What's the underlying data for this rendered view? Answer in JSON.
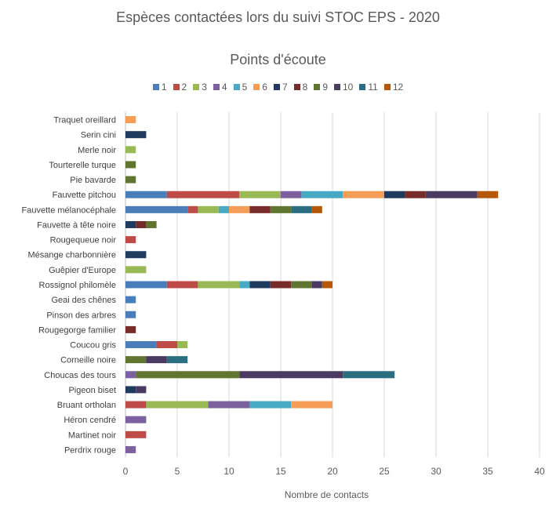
{
  "title": "Espèces contactées lors du suivi STOC EPS - 2020",
  "subtitle": "Points d'écoute",
  "colors": [
    "#4a7ebb",
    "#be4b48",
    "#98b954",
    "#7d60a0",
    "#46aac5",
    "#f59d56",
    "#1f3b5e",
    "#772c2a",
    "#5f7530",
    "#4b3b62",
    "#2b6e7f",
    "#b65708"
  ],
  "chart_data": {
    "type": "bar",
    "orientation": "horizontal",
    "stacked": true,
    "title": "Points d'écoute",
    "xlabel": "Nombre de contacts",
    "ylabel": "",
    "xlim": [
      0,
      40
    ],
    "xticks": [
      0,
      5,
      10,
      15,
      20,
      25,
      30,
      35,
      40
    ],
    "grid": true,
    "legend_position": "top",
    "categories": [
      "Traquet oreillard",
      "Serin cini",
      "Merle noir",
      "Tourterelle turque",
      "Pie bavarde",
      "Fauvette pitchou",
      "Fauvette mélanocéphale",
      "Fauvette à tête noire",
      "Rougequeue noir",
      "Mésange charbonnière",
      "Guêpier d'Europe",
      "Rossignol philomèle",
      "Geai des chênes",
      "Pinson des arbres",
      "Rougegorge familier",
      "Coucou gris",
      "Corneille noire",
      "Choucas des tours",
      "Pigeon biset",
      "Bruant ortholan",
      "Héron cendré",
      "Martinet noir",
      "Perdrix rouge"
    ],
    "series": [
      {
        "name": "1",
        "values": [
          0,
          0,
          0,
          0,
          0,
          4,
          6,
          0,
          0,
          0,
          0,
          4,
          1,
          1,
          0,
          3,
          0,
          0,
          0,
          0,
          0,
          0,
          0
        ]
      },
      {
        "name": "2",
        "values": [
          0,
          0,
          0,
          0,
          0,
          7,
          1,
          0,
          1,
          0,
          0,
          3,
          0,
          0,
          0,
          2,
          0,
          0,
          0,
          2,
          0,
          2,
          0
        ]
      },
      {
        "name": "3",
        "values": [
          0,
          0,
          1,
          0,
          0,
          4,
          2,
          0,
          0,
          0,
          2,
          4,
          0,
          0,
          0,
          1,
          0,
          0,
          0,
          6,
          0,
          0,
          0
        ]
      },
      {
        "name": "4",
        "values": [
          0,
          0,
          0,
          0,
          0,
          2,
          0,
          0,
          0,
          0,
          0,
          0,
          0,
          0,
          0,
          0,
          0,
          1,
          0,
          4,
          2,
          0,
          1
        ]
      },
      {
        "name": "5",
        "values": [
          0,
          0,
          0,
          0,
          0,
          4,
          1,
          0,
          0,
          0,
          0,
          1,
          0,
          0,
          0,
          0,
          0,
          0,
          0,
          4,
          0,
          0,
          0
        ]
      },
      {
        "name": "6",
        "values": [
          1,
          0,
          0,
          0,
          0,
          4,
          2,
          0,
          0,
          0,
          0,
          0,
          0,
          0,
          0,
          0,
          0,
          0,
          0,
          4,
          0,
          0,
          0
        ]
      },
      {
        "name": "7",
        "values": [
          0,
          2,
          0,
          0,
          0,
          2,
          0,
          1,
          0,
          2,
          0,
          2,
          0,
          0,
          0,
          0,
          0,
          0,
          1,
          0,
          0,
          0,
          0
        ]
      },
      {
        "name": "8",
        "values": [
          0,
          0,
          0,
          0,
          0,
          2,
          2,
          1,
          0,
          0,
          0,
          2,
          0,
          0,
          1,
          0,
          0,
          0,
          0,
          0,
          0,
          0,
          0
        ]
      },
      {
        "name": "9",
        "values": [
          0,
          0,
          0,
          1,
          1,
          0,
          2,
          1,
          0,
          0,
          0,
          2,
          0,
          0,
          0,
          0,
          2,
          10,
          0,
          0,
          0,
          0,
          0
        ]
      },
      {
        "name": "10",
        "values": [
          0,
          0,
          0,
          0,
          0,
          5,
          0,
          0,
          0,
          0,
          0,
          1,
          0,
          0,
          0,
          0,
          2,
          10,
          1,
          0,
          0,
          0,
          0
        ]
      },
      {
        "name": "11",
        "values": [
          0,
          0,
          0,
          0,
          0,
          0,
          2,
          0,
          0,
          0,
          0,
          0,
          0,
          0,
          0,
          0,
          2,
          5,
          0,
          0,
          0,
          0,
          0
        ]
      },
      {
        "name": "12",
        "values": [
          0,
          0,
          0,
          0,
          0,
          2,
          1,
          0,
          0,
          0,
          0,
          1,
          0,
          0,
          0,
          0,
          0,
          0,
          0,
          0,
          0,
          0,
          0
        ]
      }
    ]
  }
}
